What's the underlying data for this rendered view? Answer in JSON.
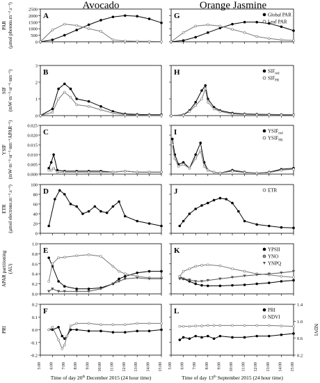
{
  "columns": {
    "left_title": "Avocado",
    "right_title": "Orange Jasmine",
    "left_xlabel_pre": "Time of day 20",
    "left_xlabel_sup": "th",
    "left_xlabel_post": " December 2015 (24 hour time)",
    "right_xlabel_pre": "Time of day 13",
    "right_xlabel_sup": "th",
    "right_xlabel_post": " September 2015 (24 hour time)",
    "left_ticks": [
      "5:00",
      "6:00",
      "7:00",
      "8:00",
      "9:00",
      "10:00",
      "11:00",
      "12:00",
      "13:00",
      "14:00",
      "15:00"
    ],
    "right_ticks": [
      "5:00",
      "6:00",
      "7:00",
      "8:00",
      "9:00",
      "10:00",
      "11:00",
      "12:00",
      "13:00",
      "14:00",
      "15:00"
    ]
  },
  "rows": [
    {
      "id": "par",
      "ylabel_lines": [
        "PAR",
        "(μmol photons.m⁻².s⁻¹)"
      ],
      "ylim": [
        0,
        2500
      ],
      "yticks": [
        "0",
        "500",
        "1000",
        "1500",
        "2000",
        "2500"
      ],
      "left_letter": "A",
      "right_letter": "G",
      "legend": [
        {
          "symbol": "filled-circle",
          "text": "Global PAR"
        },
        {
          "symbol": "open-circle",
          "text": "Leaf PAR"
        }
      ]
    },
    {
      "id": "sif",
      "ylabel_lines": [
        "SIF",
        "(mW·m⁻²·sr⁻¹·nm⁻¹)"
      ],
      "ylim": [
        0,
        3
      ],
      "yticks": [
        "0",
        "1",
        "2",
        "3"
      ],
      "left_letter": "B",
      "right_letter": "H",
      "legend": [
        {
          "symbol": "filled-circle",
          "text": "SIF",
          "sub": "red"
        },
        {
          "symbol": "open-circle",
          "text": "SIF",
          "sub": "FR"
        }
      ]
    },
    {
      "id": "ysif",
      "ylabel_lines": [
        "YSIF",
        "(mW·m⁻²·sr⁻¹·nm⁻¹APAR⁻¹)"
      ],
      "ylim": [
        0,
        0.025
      ],
      "yticks": [
        "0.000",
        "0.005",
        "0.010",
        "0.015",
        "0.020",
        "0.025"
      ],
      "left_letter": "C",
      "right_letter": "I",
      "legend": [
        {
          "symbol": "filled-circle",
          "text": "YSIF",
          "sub": "red"
        },
        {
          "symbol": "open-circle",
          "text": "YSIF",
          "sub": "FR"
        }
      ]
    },
    {
      "id": "etr",
      "ylabel_lines": [
        "ETR",
        "(μmol electrons.m⁻².s⁻¹)"
      ],
      "ylim": [
        0,
        100
      ],
      "yticks": [
        "0",
        "20",
        "40",
        "60",
        "80",
        "100"
      ],
      "left_letter": "D",
      "right_letter": "J",
      "legend": [
        {
          "symbol": "open-circle",
          "text": "ETR"
        }
      ]
    },
    {
      "id": "apar",
      "ylabel_lines": [
        "APAR partitioning",
        "(AU)"
      ],
      "ylim": [
        0,
        1
      ],
      "yticks": [
        "0.0",
        "0.2",
        "0.4",
        "0.6",
        "0.8",
        "1.0"
      ],
      "left_letter": "E",
      "right_letter": "K",
      "legend": [
        {
          "symbol": "filled-circle",
          "text": "YPSII"
        },
        {
          "symbol": "grey-circle",
          "text": "YNO"
        },
        {
          "symbol": "triangle",
          "text": "YNPQ"
        }
      ]
    },
    {
      "id": "pri",
      "ylabel_lines": [
        "PRI"
      ],
      "ylim": [
        -0.2,
        0.2
      ],
      "yticks": [
        "-0.2",
        "-0.1",
        "0.0",
        "0.1",
        "0.2"
      ],
      "left_letter": "F",
      "right_letter": "L",
      "right_ylabel": "NDVI",
      "right_yticks": [
        "0.2",
        "0.6",
        "1.0",
        "1.4"
      ],
      "legend": [
        {
          "symbol": "filled-circle",
          "text": "PRI"
        },
        {
          "symbol": "open-circle",
          "text": "NDVI"
        }
      ]
    }
  ],
  "chart_data": [
    {
      "panel": "A",
      "type": "line",
      "x": [
        5,
        6,
        7,
        8,
        9,
        10,
        11,
        12,
        13,
        14,
        15
      ],
      "series": [
        {
          "name": "Global PAR",
          "values": [
            0,
            150,
            500,
            900,
            1300,
            1650,
            1900,
            2000,
            1950,
            1750,
            1450
          ]
        },
        {
          "name": "Leaf PAR",
          "values": [
            0,
            900,
            1350,
            1250,
            1000,
            800,
            150,
            60,
            40,
            30,
            20
          ]
        }
      ]
    },
    {
      "panel": "B",
      "type": "line",
      "x": [
        5,
        6,
        6.5,
        7,
        7.5,
        8,
        9,
        10,
        11,
        12,
        13,
        14,
        15
      ],
      "series": [
        {
          "name": "SIF red",
          "values": [
            0,
            0.4,
            1.6,
            1.9,
            1.6,
            1.0,
            0.85,
            0.55,
            0.25,
            0.1,
            0.07,
            0.05,
            0.05
          ]
        },
        {
          "name": "SIF FR",
          "values": [
            0,
            0.2,
            1.0,
            1.4,
            1.1,
            0.65,
            0.55,
            0.35,
            0.15,
            0.05,
            0.03,
            0.02,
            0.02
          ]
        }
      ]
    },
    {
      "panel": "C",
      "type": "line",
      "x": [
        5.7,
        5.9,
        6.1,
        6.4,
        7,
        8,
        9,
        10,
        11,
        12,
        13,
        14,
        15
      ],
      "series": [
        {
          "name": "YSIF red",
          "values": [
            0.003,
            0.006,
            0.01,
            0.002,
            0.0015,
            0.0015,
            0.0015,
            0.0015,
            0.001,
            0.0015,
            0.001,
            0.001,
            0.001
          ]
        },
        {
          "name": "YSIF FR",
          "values": [
            0.002,
            0.002,
            0.003,
            0.001,
            0.001,
            0.001,
            0.001,
            0.001,
            0.001,
            0.0015,
            0.001,
            0.001,
            0.001
          ]
        }
      ]
    },
    {
      "panel": "D",
      "type": "line",
      "x": [
        5.7,
        6.2,
        6.6,
        7,
        7.5,
        8,
        8.5,
        9,
        9.5,
        10,
        10.5,
        11,
        11.5,
        12,
        13,
        14,
        15
      ],
      "series": [
        {
          "name": "ETR",
          "values": [
            15,
            70,
            88,
            80,
            60,
            55,
            40,
            45,
            55,
            45,
            42,
            55,
            65,
            35,
            25,
            20,
            15
          ]
        }
      ]
    },
    {
      "panel": "E",
      "type": "line",
      "x": [
        5.7,
        6,
        6.5,
        7,
        8,
        9,
        10,
        11,
        11.5,
        12,
        13,
        14,
        15
      ],
      "series": [
        {
          "name": "YPSII",
          "values": [
            0.72,
            0.55,
            0.25,
            0.15,
            0.1,
            0.1,
            0.12,
            0.2,
            0.3,
            0.35,
            0.42,
            0.45,
            0.45
          ]
        },
        {
          "name": "YNO",
          "values": [
            0.25,
            0.6,
            0.72,
            0.73,
            0.76,
            0.78,
            0.75,
            0.55,
            0.45,
            0.4,
            0.35,
            0.32,
            0.32
          ]
        },
        {
          "name": "YNPQ",
          "values": [
            0.05,
            0.1,
            0.05,
            0.05,
            0.05,
            0.05,
            0.1,
            0.2,
            0.25,
            0.3,
            0.32,
            0.3,
            0.3
          ]
        }
      ]
    },
    {
      "panel": "F",
      "type": "line",
      "x": [
        5.7,
        6,
        6.5,
        6.8,
        7,
        7.2,
        7.5,
        8,
        9,
        10,
        11,
        12,
        13,
        14,
        15
      ],
      "series": [
        {
          "name": "PRI",
          "values": [
            0.0,
            0.0,
            0.02,
            -0.05,
            -0.07,
            -0.05,
            0.0,
            0.0,
            -0.01,
            -0.01,
            -0.02,
            -0.02,
            -0.01,
            -0.01,
            0.0
          ]
        },
        {
          "name": "NDVI",
          "values": [
            0.0,
            0.02,
            -0.08,
            -0.15,
            -0.12,
            -0.05,
            0.03,
            0.05,
            0.05,
            0.04,
            0.04,
            0.04,
            0.05,
            0.05,
            0.05
          ]
        }
      ]
    },
    {
      "panel": "G",
      "type": "line",
      "x": [
        5,
        6,
        7,
        8,
        9,
        10,
        11,
        12,
        13,
        14,
        15
      ],
      "series": [
        {
          "name": "Global PAR",
          "values": [
            0,
            100,
            350,
            700,
            1050,
            1350,
            1500,
            1500,
            1400,
            1150,
            850
          ]
        },
        {
          "name": "Leaf PAR",
          "values": [
            0,
            700,
            1200,
            1300,
            1200,
            950,
            700,
            400,
            250,
            150,
            100
          ]
        }
      ]
    },
    {
      "panel": "H",
      "type": "line",
      "x": [
        5,
        6,
        6.5,
        7,
        7.5,
        7.8,
        8,
        8.5,
        9,
        10,
        11,
        12,
        13,
        14,
        15
      ],
      "series": [
        {
          "name": "SIF red",
          "values": [
            0,
            0.05,
            0.3,
            0.8,
            1.5,
            1.8,
            1.0,
            0.5,
            0.3,
            0.15,
            0.1,
            0.08,
            0.07,
            0.06,
            0.05
          ]
        },
        {
          "name": "SIF FR",
          "values": [
            0,
            0.03,
            0.25,
            0.6,
            1.0,
            1.6,
            0.8,
            0.4,
            0.25,
            0.1,
            0.07,
            0.05,
            0.05,
            0.04,
            0.04
          ]
        }
      ]
    },
    {
      "panel": "I",
      "type": "line",
      "x": [
        5.1,
        5.3,
        5.6,
        6,
        6.5,
        7,
        7.4,
        7.7,
        8,
        8.5,
        9,
        10,
        11,
        12,
        13,
        14,
        15
      ],
      "series": [
        {
          "name": "YSIF red",
          "values": [
            0.018,
            0.01,
            0.005,
            0.006,
            0.003,
            0.01,
            0.016,
            0.006,
            0.002,
            0.001,
            0.0005,
            0.002,
            0.001,
            0.0005,
            0.001,
            0.0025,
            0.003
          ]
        },
        {
          "name": "YSIF FR",
          "values": [
            0.015,
            0.008,
            0.004,
            0.005,
            0.003,
            0.008,
            0.012,
            0.004,
            0.002,
            0.001,
            0.0005,
            0.0015,
            0.0008,
            0.0005,
            0.0008,
            0.002,
            0.0025
          ]
        }
      ]
    },
    {
      "panel": "J",
      "type": "line",
      "x": [
        5.7,
        6,
        6.5,
        7,
        7.5,
        8,
        8.5,
        9,
        9.5,
        10,
        10.5,
        11,
        12,
        13,
        14,
        15
      ],
      "series": [
        {
          "name": "ETR",
          "values": [
            15,
            25,
            40,
            50,
            57,
            62,
            68,
            72,
            70,
            62,
            45,
            25,
            18,
            15,
            12,
            11
          ]
        }
      ]
    },
    {
      "panel": "K",
      "type": "line",
      "x": [
        5.7,
        6,
        6.5,
        7,
        7.5,
        8,
        9,
        10,
        11,
        12,
        13,
        14,
        15
      ],
      "series": [
        {
          "name": "YPSII",
          "values": [
            0.35,
            0.3,
            0.25,
            0.2,
            0.17,
            0.16,
            0.16,
            0.17,
            0.18,
            0.2,
            0.22,
            0.25,
            0.27
          ]
        },
        {
          "name": "YNO",
          "values": [
            0.35,
            0.45,
            0.5,
            0.55,
            0.57,
            0.58,
            0.56,
            0.5,
            0.45,
            0.4,
            0.38,
            0.35,
            0.33
          ]
        },
        {
          "name": "YNPQ",
          "values": [
            0.3,
            0.3,
            0.28,
            0.25,
            0.25,
            0.27,
            0.3,
            0.33,
            0.36,
            0.38,
            0.4,
            0.42,
            0.45
          ]
        }
      ]
    },
    {
      "panel": "L",
      "type": "line",
      "x": [
        5.7,
        6,
        6.5,
        7,
        7.5,
        8,
        8.5,
        9,
        10,
        11,
        12,
        13,
        14,
        15
      ],
      "series": [
        {
          "name": "PRI",
          "values": [
            -0.08,
            -0.06,
            -0.07,
            -0.05,
            -0.06,
            -0.05,
            -0.07,
            -0.05,
            -0.06,
            -0.06,
            -0.05,
            -0.05,
            -0.04,
            -0.03
          ]
        },
        {
          "name": "NDVI",
          "values": [
            0.88,
            0.88,
            0.88,
            0.89,
            0.89,
            0.9,
            0.9,
            0.9,
            0.9,
            0.9,
            0.9,
            0.9,
            0.89,
            0.88
          ]
        }
      ]
    }
  ]
}
